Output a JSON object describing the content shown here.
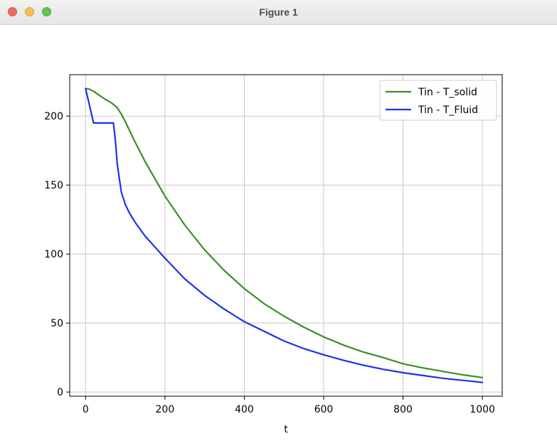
{
  "window": {
    "title": "Figure 1"
  },
  "colors": {
    "solid": "#3a8f27",
    "fluid": "#1a34e6",
    "grid": "#c8c8c8"
  },
  "chart_data": {
    "type": "line",
    "title": "",
    "xlabel": "t",
    "ylabel": "",
    "xlim": [
      -40,
      1050
    ],
    "ylim": [
      -3,
      230
    ],
    "xticks": [
      0,
      200,
      400,
      600,
      800,
      1000
    ],
    "yticks": [
      0,
      50,
      100,
      150,
      200
    ],
    "grid": true,
    "legend_position": "top-right",
    "series": [
      {
        "name": "Tin - T_solid",
        "color": "#3a8f27",
        "x": [
          0,
          10,
          20,
          30,
          40,
          50,
          60,
          70,
          80,
          90,
          100,
          120,
          150,
          200,
          250,
          300,
          350,
          400,
          450,
          500,
          550,
          600,
          650,
          700,
          750,
          800,
          850,
          900,
          950,
          1000
        ],
        "y": [
          220,
          219.5,
          218,
          216,
          214,
          212,
          210.5,
          208.5,
          206,
          201.5,
          196,
          184,
          167,
          142,
          121,
          103,
          88,
          75,
          64,
          55,
          47,
          40,
          34,
          29,
          25,
          20.5,
          17.5,
          15,
          12.5,
          10.5
        ]
      },
      {
        "name": "Tin - T_Fluid",
        "color": "#1a34e6",
        "x": [
          0,
          20,
          40,
          60,
          70,
          75,
          80,
          90,
          100,
          110,
          125,
          150,
          200,
          250,
          300,
          350,
          400,
          450,
          500,
          550,
          600,
          650,
          700,
          750,
          800,
          850,
          900,
          950,
          1000
        ],
        "y": [
          220,
          195,
          195,
          195,
          195,
          183,
          165,
          145,
          136,
          130,
          123,
          113,
          97,
          82,
          70,
          60,
          51,
          44,
          37,
          31.5,
          27,
          23,
          19.5,
          16.5,
          14,
          12,
          10,
          8.5,
          7
        ]
      }
    ]
  }
}
